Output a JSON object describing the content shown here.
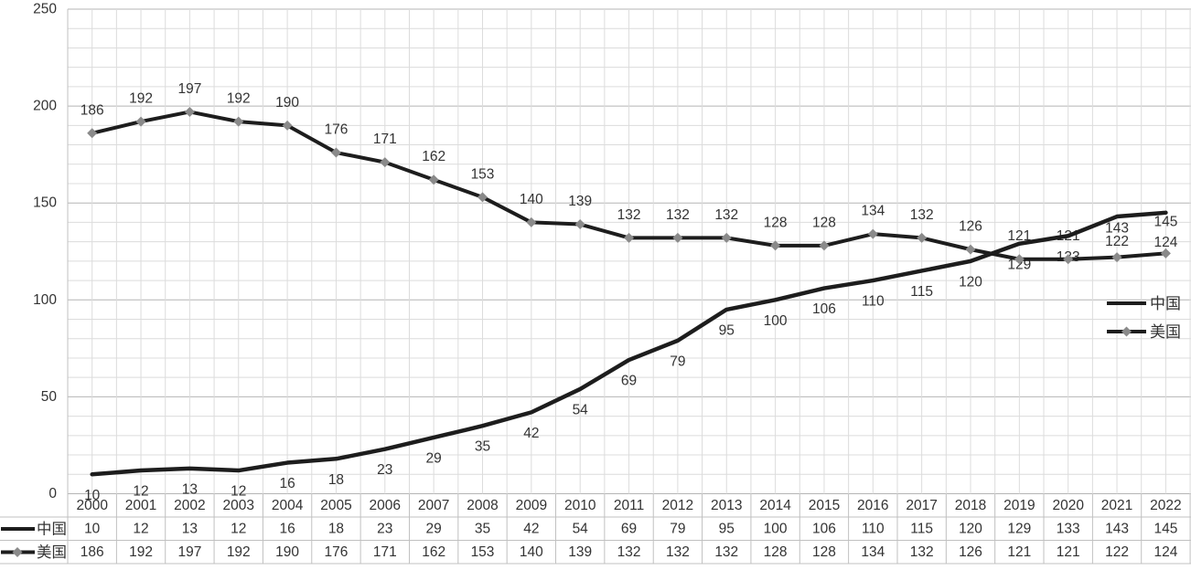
{
  "chart_data": {
    "type": "line",
    "title": "",
    "categories": [
      "2000",
      "2001",
      "2002",
      "2003",
      "2004",
      "2005",
      "2006",
      "2007",
      "2008",
      "2009",
      "2010",
      "2011",
      "2012",
      "2013",
      "2014",
      "2015",
      "2016",
      "2017",
      "2018",
      "2019",
      "2020",
      "2021",
      "2022"
    ],
    "series": [
      {
        "name": "中国",
        "values": [
          10,
          12,
          13,
          12,
          16,
          18,
          23,
          29,
          35,
          42,
          54,
          69,
          79,
          95,
          100,
          106,
          110,
          115,
          120,
          129,
          133,
          143,
          145
        ],
        "marker": "none",
        "label_position": "below"
      },
      {
        "name": "美国",
        "values": [
          186,
          192,
          197,
          192,
          190,
          176,
          171,
          162,
          153,
          140,
          139,
          132,
          132,
          132,
          128,
          128,
          134,
          132,
          126,
          121,
          121,
          122,
          124
        ],
        "marker": "diamond",
        "label_position": "above"
      }
    ],
    "ylabel": "",
    "xlabel": "",
    "ylim": [
      0,
      250
    ],
    "y_tick_labels": [
      "0",
      "50",
      "100",
      "150",
      "200",
      "250"
    ],
    "y_major_step": 50,
    "y_minor_step": 10,
    "grid": "on",
    "data_labels": "on",
    "legend": {
      "position": "inside-right",
      "items": [
        "中国",
        "美国"
      ]
    },
    "data_table": {
      "shown": true,
      "row_labels": [
        "中国",
        "美国"
      ]
    }
  },
  "colors": {
    "series_line": "#1d1d1d",
    "marker_fill": "#8a8a8a",
    "grid_minor": "#dcdcdc",
    "grid_major": "#b5b5b5",
    "table_border": "#c0c0c0",
    "text": "#333333",
    "background": "#ffffff"
  }
}
